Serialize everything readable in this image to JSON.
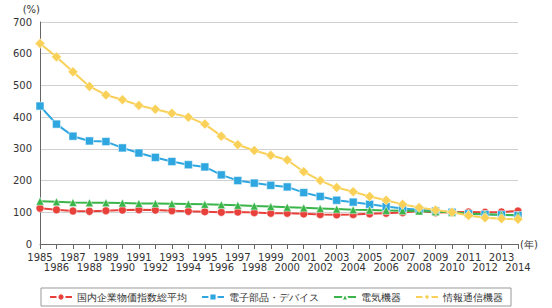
{
  "chart_data": {
    "type": "line",
    "y_label": "(%)",
    "x_label": "(年)",
    "categories": [
      "1985",
      "1986",
      "1987",
      "1988",
      "1989",
      "1990",
      "1991",
      "1992",
      "1993",
      "1994",
      "1995",
      "1996",
      "1997",
      "1998",
      "1999",
      "2000",
      "2001",
      "2002",
      "2003",
      "2004",
      "2005",
      "2006",
      "2007",
      "2008",
      "2009",
      "2010",
      "2011",
      "2012",
      "2013",
      "2014"
    ],
    "series": [
      {
        "name": "国内企業物価指数総平均",
        "color": "#e8413b",
        "marker": "circle",
        "values": [
          113,
          108,
          104,
          103,
          105,
          107,
          108,
          107,
          105,
          103,
          102,
          100,
          101,
          99,
          97,
          97,
          95,
          93,
          92,
          93,
          95,
          97,
          99,
          104,
          99,
          100,
          101,
          100,
          101,
          104
        ]
      },
      {
        "name": "電子部品・デバイス",
        "color": "#2ea7e0",
        "marker": "square",
        "values": [
          435,
          378,
          340,
          325,
          323,
          303,
          287,
          273,
          260,
          250,
          243,
          218,
          200,
          192,
          185,
          180,
          162,
          150,
          138,
          132,
          125,
          118,
          112,
          108,
          104,
          100,
          95,
          93,
          92,
          90
        ]
      },
      {
        "name": "電気機器",
        "color": "#3ab54a",
        "marker": "triangle",
        "values": [
          135,
          133,
          131,
          130,
          130,
          129,
          128,
          128,
          127,
          126,
          125,
          124,
          122,
          120,
          118,
          116,
          114,
          112,
          110,
          108,
          107,
          106,
          105,
          104,
          102,
          100,
          96,
          94,
          92,
          91
        ]
      },
      {
        "name": "情報通信機器",
        "color": "#f9d158",
        "marker": "diamond",
        "values": [
          632,
          590,
          543,
          497,
          470,
          455,
          437,
          425,
          412,
          400,
          378,
          340,
          313,
          295,
          280,
          265,
          228,
          200,
          178,
          165,
          150,
          138,
          125,
          115,
          107,
          100,
          90,
          83,
          80,
          78
        ]
      }
    ],
    "ylim": [
      0,
      700
    ],
    "yticks": [
      0,
      100,
      200,
      300,
      400,
      500,
      600,
      700
    ],
    "grid": true,
    "legend": "bottom"
  }
}
